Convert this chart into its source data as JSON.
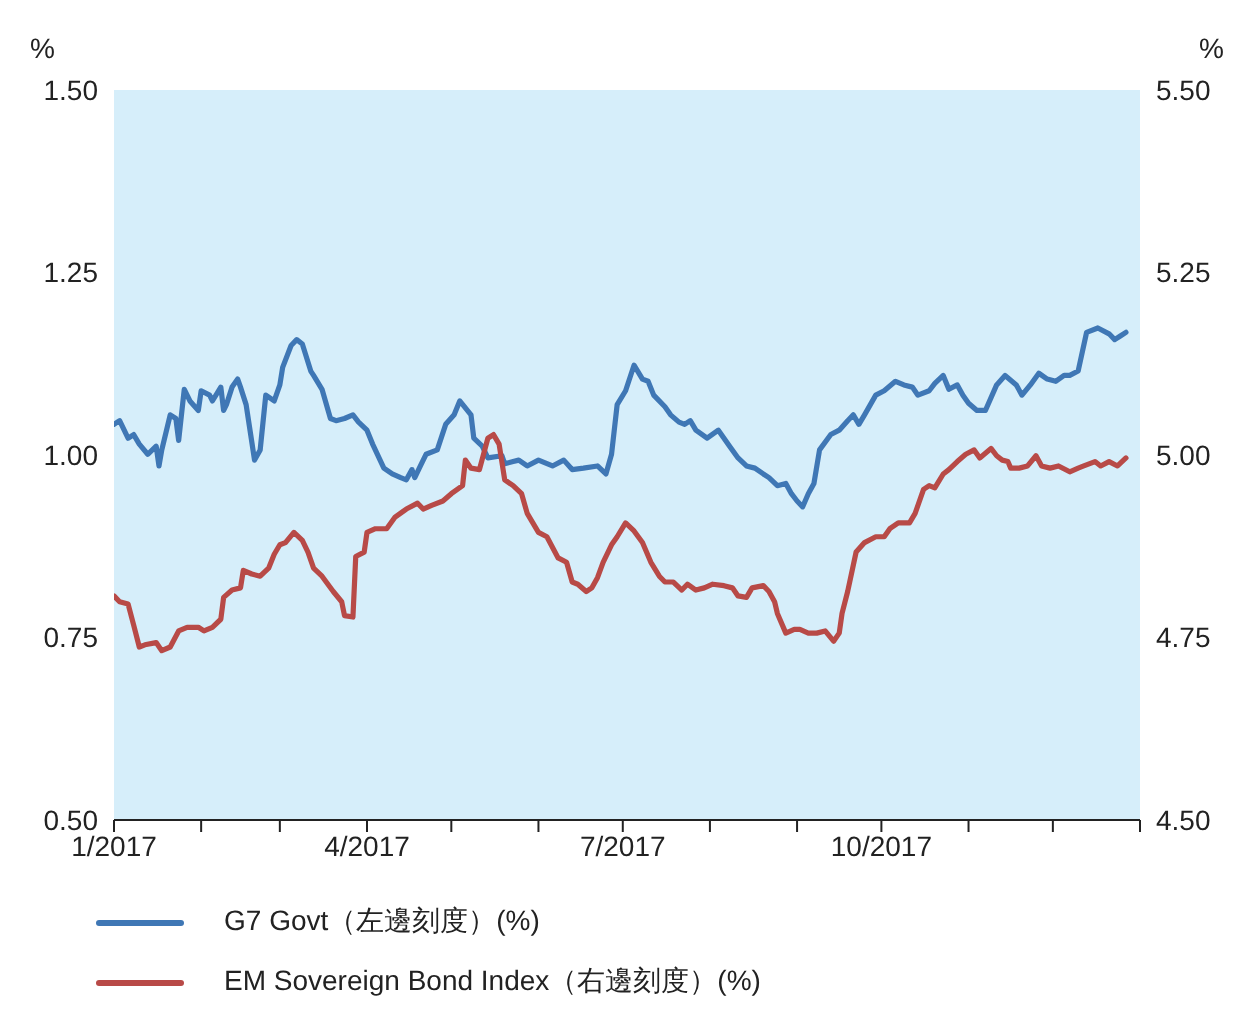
{
  "chart_data": {
    "type": "line",
    "ylabel": "%",
    "y2label": "%",
    "xlim": [
      "2017-01-01",
      "2018-01-01"
    ],
    "xticks": [
      {
        "value": "2017-01",
        "label": "1/2017"
      },
      {
        "value": "2017-02",
        "label": null
      },
      {
        "value": "2017-03",
        "label": null
      },
      {
        "value": "2017-04",
        "label": "4/2017"
      },
      {
        "value": "2017-05",
        "label": null
      },
      {
        "value": "2017-06",
        "label": null
      },
      {
        "value": "2017-07",
        "label": "7/2017"
      },
      {
        "value": "2017-08",
        "label": null
      },
      {
        "value": "2017-09",
        "label": null
      },
      {
        "value": "2017-10",
        "label": "10/2017"
      },
      {
        "value": "2017-11",
        "label": null
      },
      {
        "value": "2017-12",
        "label": null
      },
      {
        "value": "2018-01",
        "label": null
      }
    ],
    "ylim": [
      0.5,
      1.5
    ],
    "yticks": [
      {
        "value": 0.5,
        "label": "0.50"
      },
      {
        "value": 0.75,
        "label": "0.75"
      },
      {
        "value": 1.0,
        "label": "1.00"
      },
      {
        "value": 1.25,
        "label": "1.25"
      },
      {
        "value": 1.5,
        "label": "1.50"
      }
    ],
    "y2lim": [
      4.5,
      5.5
    ],
    "y2ticks": [
      {
        "value": 4.5,
        "label": "4.50"
      },
      {
        "value": 4.75,
        "label": "4.75"
      },
      {
        "value": 5.0,
        "label": "5.00"
      },
      {
        "value": 5.25,
        "label": "5.25"
      },
      {
        "value": 5.5,
        "label": "5.50"
      }
    ],
    "legend": "bottom",
    "marker": "none",
    "line_style": "solid",
    "series": [
      {
        "name": "G7 Govt（左邊刻度）(%)",
        "color": "#3f77b5",
        "x": [
          "2017-01-01",
          "2017-01-03",
          "2017-01-06",
          "2017-01-08",
          "2017-01-10",
          "2017-01-13",
          "2017-01-16",
          "2017-01-17",
          "2017-01-18",
          "2017-01-21",
          "2017-01-23",
          "2017-01-24",
          "2017-01-26",
          "2017-01-28",
          "2017-01-31",
          "2017-02-01",
          "2017-02-04",
          "2017-02-05",
          "2017-02-08",
          "2017-02-09",
          "2017-02-10",
          "2017-02-12",
          "2017-02-14",
          "2017-02-15",
          "2017-02-17",
          "2017-02-20",
          "2017-02-22",
          "2017-02-24",
          "2017-02-27",
          "2017-03-01",
          "2017-03-02",
          "2017-03-05",
          "2017-03-07",
          "2017-03-09",
          "2017-03-12",
          "2017-03-13",
          "2017-03-16",
          "2017-03-19",
          "2017-03-21",
          "2017-03-24",
          "2017-03-27",
          "2017-03-29",
          "2017-04-01",
          "2017-04-03",
          "2017-04-07",
          "2017-04-10",
          "2017-04-13",
          "2017-04-15",
          "2017-04-17",
          "2017-04-18",
          "2017-04-20",
          "2017-04-22",
          "2017-04-26",
          "2017-04-29",
          "2017-05-02",
          "2017-05-04",
          "2017-05-08",
          "2017-05-09",
          "2017-05-12",
          "2017-05-14",
          "2017-05-19",
          "2017-05-20",
          "2017-05-23",
          "2017-05-25",
          "2017-05-28",
          "2017-06-01",
          "2017-06-06",
          "2017-06-10",
          "2017-06-13",
          "2017-06-17",
          "2017-06-22",
          "2017-06-25",
          "2017-06-27",
          "2017-06-29",
          "2017-07-02",
          "2017-07-05",
          "2017-07-08",
          "2017-07-10",
          "2017-07-12",
          "2017-07-16",
          "2017-07-18",
          "2017-07-21",
          "2017-07-23",
          "2017-07-25",
          "2017-07-27",
          "2017-07-31",
          "2017-08-04",
          "2017-08-08",
          "2017-08-11",
          "2017-08-14",
          "2017-08-17",
          "2017-08-20",
          "2017-08-22",
          "2017-08-25",
          "2017-08-28",
          "2017-08-30",
          "2017-09-01",
          "2017-09-03",
          "2017-09-05",
          "2017-09-07",
          "2017-09-09",
          "2017-09-13",
          "2017-09-16",
          "2017-09-19",
          "2017-09-21",
          "2017-09-23",
          "2017-09-25",
          "2017-09-29",
          "2017-10-02",
          "2017-10-06",
          "2017-10-09",
          "2017-10-12",
          "2017-10-14",
          "2017-10-18",
          "2017-10-20",
          "2017-10-23",
          "2017-10-25",
          "2017-10-28",
          "2017-10-30",
          "2017-11-01",
          "2017-11-04",
          "2017-11-07",
          "2017-11-11",
          "2017-11-14",
          "2017-11-18",
          "2017-11-20",
          "2017-11-23",
          "2017-11-26",
          "2017-11-29",
          "2017-12-02",
          "2017-12-05",
          "2017-12-07",
          "2017-12-10",
          "2017-12-13",
          "2017-12-17",
          "2017-12-21",
          "2017-12-23",
          "2017-12-25",
          "2017-12-27"
        ],
        "values": [
          1.042,
          1.047,
          1.023,
          1.028,
          1.015,
          1.001,
          1.012,
          0.985,
          1.007,
          1.055,
          1.05,
          1.02,
          1.09,
          1.074,
          1.061,
          1.088,
          1.082,
          1.074,
          1.093,
          1.061,
          1.069,
          1.093,
          1.104,
          1.093,
          1.069,
          0.993,
          1.007,
          1.082,
          1.074,
          1.096,
          1.12,
          1.15,
          1.158,
          1.152,
          1.115,
          1.109,
          1.09,
          1.05,
          1.047,
          1.05,
          1.055,
          1.045,
          1.034,
          1.015,
          0.982,
          0.974,
          0.969,
          0.966,
          0.98,
          0.969,
          0.985,
          1.001,
          1.007,
          1.042,
          1.055,
          1.074,
          1.055,
          1.023,
          1.012,
          0.996,
          0.999,
          0.988,
          0.991,
          0.993,
          0.985,
          0.993,
          0.985,
          0.993,
          0.98,
          0.982,
          0.985,
          0.974,
          1.001,
          1.069,
          1.088,
          1.123,
          1.104,
          1.101,
          1.082,
          1.066,
          1.055,
          1.045,
          1.042,
          1.047,
          1.034,
          1.023,
          1.034,
          1.012,
          0.996,
          0.985,
          0.982,
          0.974,
          0.969,
          0.958,
          0.961,
          0.947,
          0.937,
          0.929,
          0.947,
          0.961,
          1.007,
          1.028,
          1.034,
          1.047,
          1.055,
          1.042,
          1.055,
          1.082,
          1.088,
          1.101,
          1.096,
          1.093,
          1.082,
          1.088,
          1.098,
          1.109,
          1.09,
          1.096,
          1.082,
          1.071,
          1.061,
          1.061,
          1.096,
          1.109,
          1.096,
          1.082,
          1.096,
          1.112,
          1.104,
          1.101,
          1.109,
          1.109,
          1.115,
          1.168,
          1.174,
          1.166,
          1.158,
          1.163,
          1.168
        ]
      },
      {
        "name": "EM Sovereign Bond Index（右邊刻度）(%)",
        "color": "#b84a47",
        "axis": "y2",
        "x": [
          "2017-01-01",
          "2017-01-03",
          "2017-01-06",
          "2017-01-08",
          "2017-01-10",
          "2017-01-12",
          "2017-01-16",
          "2017-01-18",
          "2017-01-21",
          "2017-01-24",
          "2017-01-27",
          "2017-01-31",
          "2017-02-02",
          "2017-02-05",
          "2017-02-08",
          "2017-02-09",
          "2017-02-12",
          "2017-02-15",
          "2017-02-16",
          "2017-02-19",
          "2017-02-22",
          "2017-02-25",
          "2017-02-27",
          "2017-03-01",
          "2017-03-03",
          "2017-03-06",
          "2017-03-09",
          "2017-03-11",
          "2017-03-13",
          "2017-03-16",
          "2017-03-20",
          "2017-03-23",
          "2017-03-24",
          "2017-03-27",
          "2017-03-28",
          "2017-03-31",
          "2017-04-01",
          "2017-04-04",
          "2017-04-08",
          "2017-04-11",
          "2017-04-15",
          "2017-04-19",
          "2017-04-21",
          "2017-04-24",
          "2017-04-28",
          "2017-05-01",
          "2017-05-05",
          "2017-05-06",
          "2017-05-08",
          "2017-05-11",
          "2017-05-14",
          "2017-05-16",
          "2017-05-18",
          "2017-05-20",
          "2017-05-23",
          "2017-05-26",
          "2017-05-28",
          "2017-06-01",
          "2017-06-04",
          "2017-06-08",
          "2017-06-11",
          "2017-06-13",
          "2017-06-15",
          "2017-06-18",
          "2017-06-20",
          "2017-06-22",
          "2017-06-24",
          "2017-06-27",
          "2017-06-29",
          "2017-07-02",
          "2017-07-05",
          "2017-07-08",
          "2017-07-11",
          "2017-07-14",
          "2017-07-16",
          "2017-07-19",
          "2017-07-22",
          "2017-07-24",
          "2017-07-27",
          "2017-07-30",
          "2017-08-02",
          "2017-08-06",
          "2017-08-09",
          "2017-08-11",
          "2017-08-14",
          "2017-08-16",
          "2017-08-20",
          "2017-08-22",
          "2017-08-24",
          "2017-08-25",
          "2017-08-28",
          "2017-08-31",
          "2017-09-02",
          "2017-09-05",
          "2017-09-08",
          "2017-09-11",
          "2017-09-14",
          "2017-09-16",
          "2017-09-17",
          "2017-09-19",
          "2017-09-22",
          "2017-09-25",
          "2017-09-29",
          "2017-10-02",
          "2017-10-04",
          "2017-10-07",
          "2017-10-11",
          "2017-10-13",
          "2017-10-16",
          "2017-10-18",
          "2017-10-20",
          "2017-10-23",
          "2017-10-25",
          "2017-10-28",
          "2017-10-31",
          "2017-11-03",
          "2017-11-05",
          "2017-11-09",
          "2017-11-11",
          "2017-11-13",
          "2017-11-15",
          "2017-11-16",
          "2017-11-19",
          "2017-11-22",
          "2017-11-25",
          "2017-11-27",
          "2017-11-30",
          "2017-12-03",
          "2017-12-07",
          "2017-12-10",
          "2017-12-12",
          "2017-12-16",
          "2017-12-18",
          "2017-12-21",
          "2017-12-24",
          "2017-12-27"
        ],
        "values": [
          4.807,
          4.799,
          4.796,
          4.767,
          4.737,
          4.74,
          4.743,
          4.732,
          4.737,
          4.759,
          4.764,
          4.764,
          4.759,
          4.764,
          4.775,
          4.805,
          4.815,
          4.818,
          4.842,
          4.837,
          4.834,
          4.845,
          4.864,
          4.877,
          4.88,
          4.894,
          4.883,
          4.867,
          4.845,
          4.834,
          4.813,
          4.799,
          4.78,
          4.778,
          4.861,
          4.867,
          4.894,
          4.899,
          4.899,
          4.915,
          4.926,
          4.934,
          4.926,
          4.931,
          4.937,
          4.947,
          4.958,
          4.993,
          4.982,
          4.98,
          5.023,
          5.028,
          5.015,
          4.966,
          4.958,
          4.947,
          4.92,
          4.894,
          4.888,
          4.859,
          4.853,
          4.826,
          4.823,
          4.813,
          4.818,
          4.832,
          4.853,
          4.877,
          4.888,
          4.907,
          4.896,
          4.88,
          4.853,
          4.834,
          4.826,
          4.826,
          4.815,
          4.823,
          4.815,
          4.818,
          4.823,
          4.821,
          4.818,
          4.807,
          4.805,
          4.818,
          4.821,
          4.813,
          4.799,
          4.783,
          4.756,
          4.761,
          4.761,
          4.756,
          4.756,
          4.759,
          4.745,
          4.756,
          4.783,
          4.813,
          4.867,
          4.88,
          4.888,
          4.888,
          4.899,
          4.907,
          4.907,
          4.92,
          4.953,
          4.958,
          4.955,
          4.974,
          4.98,
          4.991,
          5.001,
          5.007,
          4.996,
          5.009,
          4.999,
          4.993,
          4.991,
          4.982,
          4.982,
          4.985,
          4.999,
          4.985,
          4.982,
          4.985,
          4.977,
          4.982,
          4.985,
          4.991,
          4.985,
          4.991,
          4.985,
          4.996
        ]
      }
    ]
  }
}
